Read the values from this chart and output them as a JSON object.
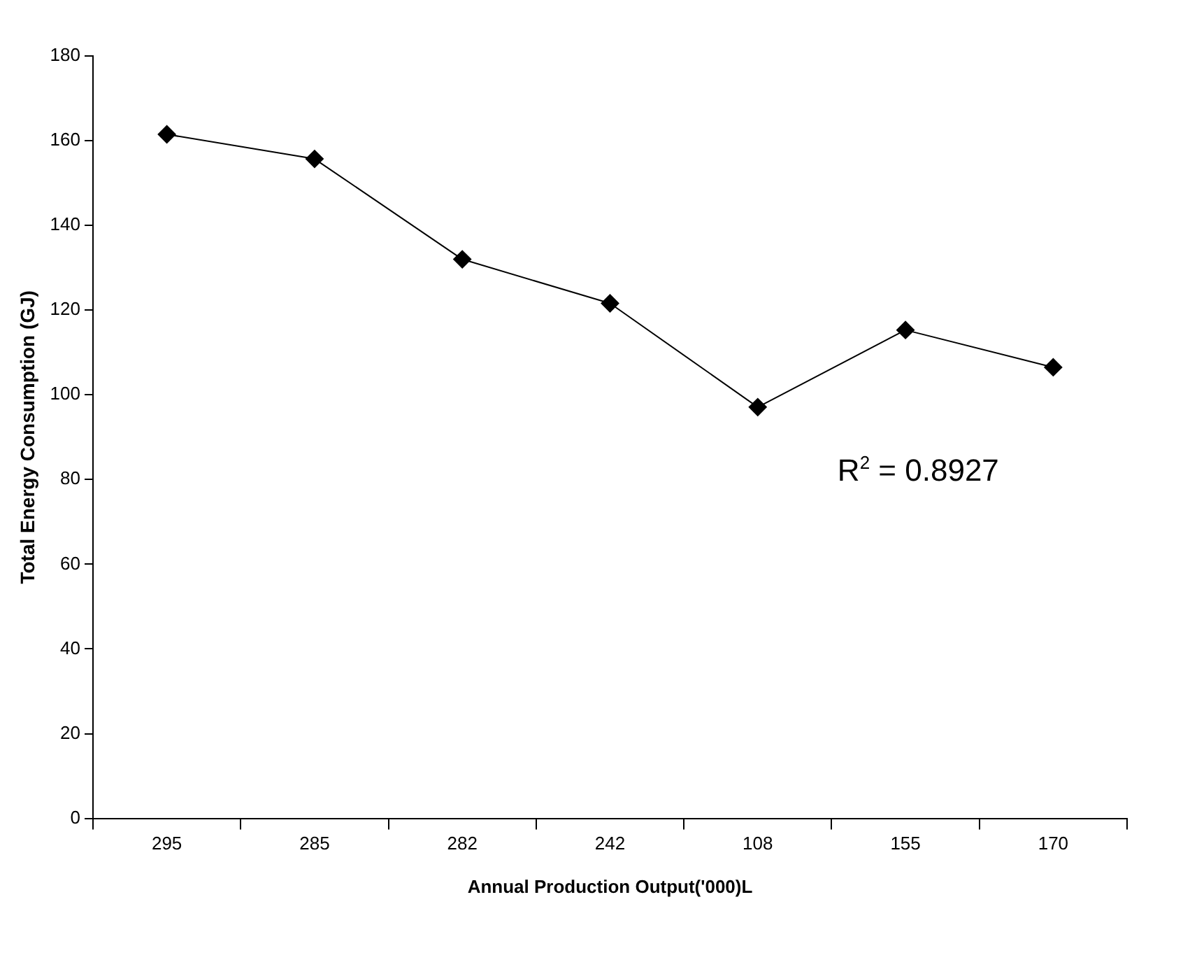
{
  "chart_data": {
    "type": "line",
    "xlabel": "Annual Production Output('000)L",
    "ylabel": "Total Energy Consumption (GJ)",
    "categories": [
      "295",
      "285",
      "282",
      "242",
      "108",
      "155",
      "170"
    ],
    "series": [
      {
        "color": "#000000",
        "values": [
          161.5,
          155.7,
          132.0,
          121.6,
          97.1,
          115.3,
          106.5
        ]
      }
    ],
    "ylim": [
      0,
      180
    ],
    "yticks": [
      0,
      20,
      40,
      60,
      80,
      100,
      120,
      140,
      160,
      180
    ],
    "grid": false,
    "legend": false,
    "marker": "diamond",
    "line_style": "solid",
    "annotations": [
      "R$^{2}$ = 0.8927"
    ]
  }
}
